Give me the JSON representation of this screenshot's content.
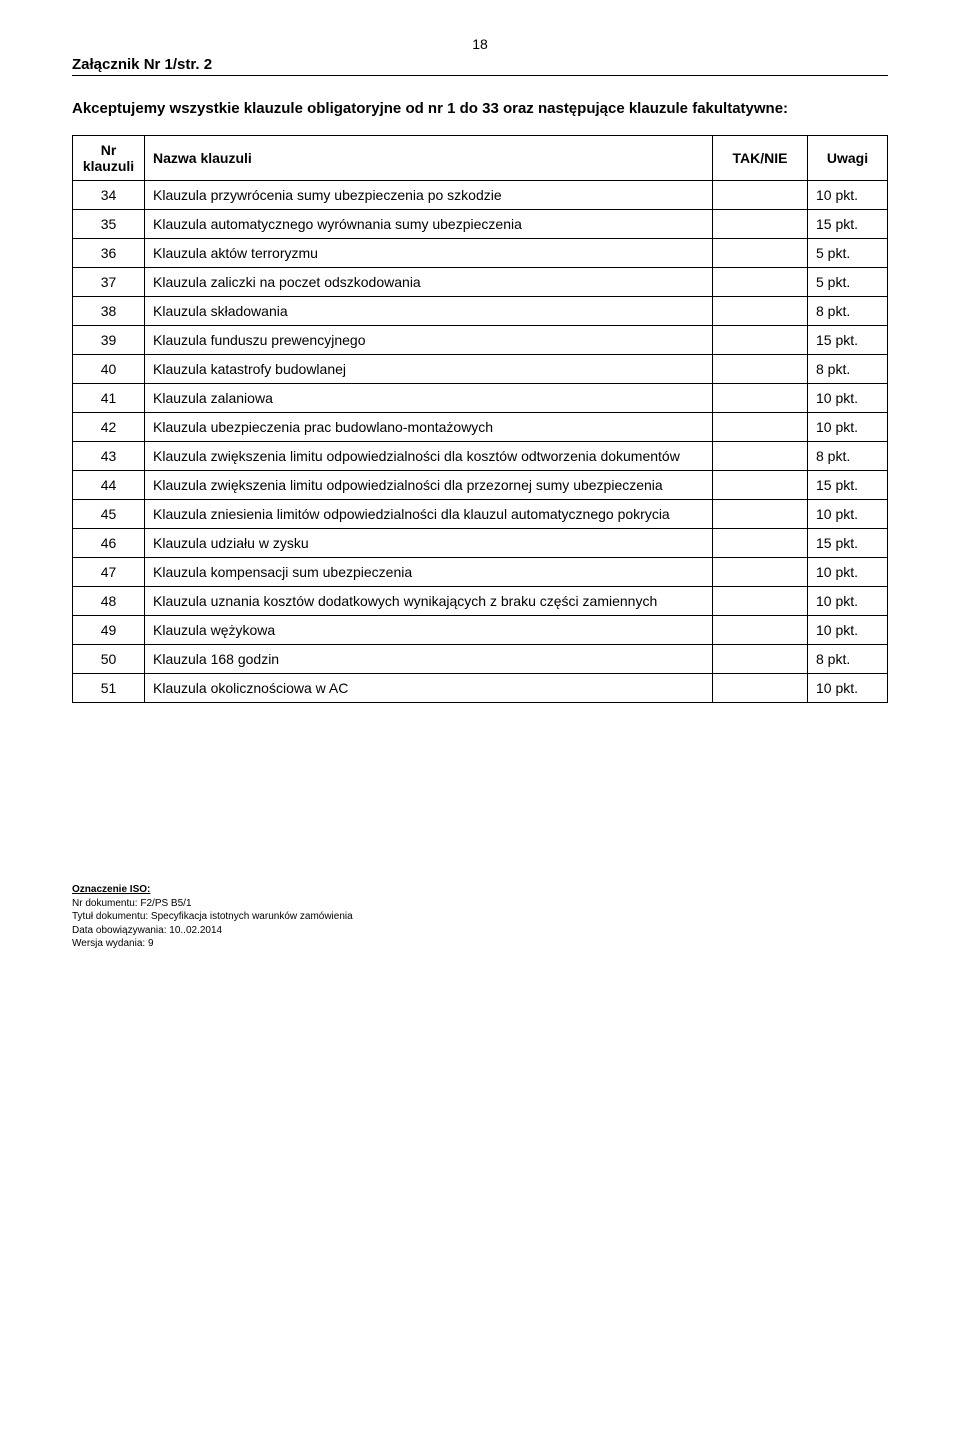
{
  "page_number": "18",
  "header_title": "Załącznik Nr 1/str. 2",
  "intro": "Akceptujemy wszystkie klauzule obligatoryjne od nr 1 do 33 oraz następujące klauzule fakultatywne:",
  "table": {
    "columns": {
      "nr": "Nr klauzuli",
      "name": "Nazwa klauzuli",
      "tak": "TAK/NIE",
      "uwagi": "Uwagi"
    },
    "rows": [
      {
        "nr": "34",
        "name": "Klauzula przywrócenia sumy ubezpieczenia po szkodzie",
        "tak": "",
        "uwagi": "10 pkt."
      },
      {
        "nr": "35",
        "name": "Klauzula automatycznego wyrównania sumy ubezpieczenia",
        "tak": "",
        "uwagi": "15 pkt."
      },
      {
        "nr": "36",
        "name": "Klauzula aktów terroryzmu",
        "tak": "",
        "uwagi": "5 pkt."
      },
      {
        "nr": "37",
        "name": "Klauzula zaliczki na poczet odszkodowania",
        "tak": "",
        "uwagi": "5 pkt."
      },
      {
        "nr": "38",
        "name": "Klauzula składowania",
        "tak": "",
        "uwagi": "8 pkt."
      },
      {
        "nr": "39",
        "name": "Klauzula funduszu prewencyjnego",
        "tak": "",
        "uwagi": "15 pkt."
      },
      {
        "nr": "40",
        "name": "Klauzula katastrofy budowlanej",
        "tak": "",
        "uwagi": "8 pkt."
      },
      {
        "nr": "41",
        "name": "Klauzula zalaniowa",
        "tak": "",
        "uwagi": "10 pkt."
      },
      {
        "nr": "42",
        "name": "Klauzula ubezpieczenia prac budowlano-montażowych",
        "tak": "",
        "uwagi": "10 pkt."
      },
      {
        "nr": "43",
        "name": "Klauzula zwiększenia limitu odpowiedzialności dla kosztów odtworzenia dokumentów",
        "tak": "",
        "uwagi": "8 pkt."
      },
      {
        "nr": "44",
        "name": "Klauzula zwiększenia limitu odpowiedzialności dla przezornej sumy ubezpieczenia",
        "tak": "",
        "uwagi": "15 pkt."
      },
      {
        "nr": "45",
        "name": "Klauzula zniesienia limitów odpowiedzialności dla klauzul automatycznego pokrycia",
        "tak": "",
        "uwagi": "10 pkt."
      },
      {
        "nr": "46",
        "name": "Klauzula udziału w zysku",
        "tak": "",
        "uwagi": "15 pkt."
      },
      {
        "nr": "47",
        "name": "Klauzula kompensacji sum ubezpieczenia",
        "tak": "",
        "uwagi": "10 pkt."
      },
      {
        "nr": "48",
        "name": "Klauzula uznania kosztów dodatkowych wynikających z braku części zamiennych",
        "tak": "",
        "uwagi": "10 pkt."
      },
      {
        "nr": "49",
        "name": "Klauzula wężykowa",
        "tak": "",
        "uwagi": "10 pkt."
      },
      {
        "nr": "50",
        "name": "Klauzula 168 godzin",
        "tak": "",
        "uwagi": "8 pkt."
      },
      {
        "nr": "51",
        "name": "Klauzula okolicznościowa w AC",
        "tak": "",
        "uwagi": "10 pkt."
      }
    ]
  },
  "footer": {
    "label": "Oznaczenie ISO:",
    "lines": [
      "Nr dokumentu: F2/PS B5/1",
      "Tytuł dokumentu: Specyfikacja istotnych warunków zamówienia",
      "Data obowiązywania: 10..02.2014",
      "Wersja wydania: 9"
    ]
  }
}
